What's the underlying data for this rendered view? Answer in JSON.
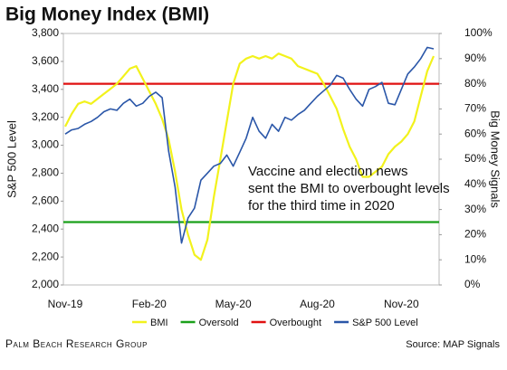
{
  "chart_data": {
    "type": "line",
    "title": "Big Money Index (BMI)",
    "y_label": "S&P 500 Level",
    "y2_label": "Big Money Signals",
    "categories": [
      "Nov-19",
      null,
      null,
      null,
      null,
      null,
      null,
      null,
      null,
      null,
      null,
      null,
      null,
      "Feb-20",
      null,
      null,
      null,
      null,
      null,
      null,
      null,
      null,
      null,
      null,
      null,
      null,
      "May-20",
      null,
      null,
      null,
      null,
      null,
      null,
      null,
      null,
      null,
      null,
      null,
      null,
      "Aug-20",
      null,
      null,
      null,
      null,
      null,
      null,
      null,
      null,
      null,
      null,
      null,
      null,
      "Nov-20",
      null,
      null,
      null,
      null,
      null
    ],
    "ylim": [
      2000,
      3800
    ],
    "yticks": [
      {
        "value": 2000,
        "label": "2,000"
      },
      {
        "value": 2200,
        "label": "2,200"
      },
      {
        "value": 2400,
        "label": "2,400"
      },
      {
        "value": 2600,
        "label": "2,600"
      },
      {
        "value": 2800,
        "label": "2,800"
      },
      {
        "value": 3000,
        "label": "3,000"
      },
      {
        "value": 3200,
        "label": "3,200"
      },
      {
        "value": 3400,
        "label": "3,400"
      },
      {
        "value": 3600,
        "label": "3,600"
      },
      {
        "value": 3800,
        "label": "3,800"
      }
    ],
    "y2lim": [
      0,
      100
    ],
    "y2ticks": [
      {
        "value": 0,
        "label": "0%"
      },
      {
        "value": 10,
        "label": "10%"
      },
      {
        "value": 20,
        "label": "20%"
      },
      {
        "value": 30,
        "label": "30%"
      },
      {
        "value": 40,
        "label": "40%"
      },
      {
        "value": 50,
        "label": "50%"
      },
      {
        "value": 60,
        "label": "60%"
      },
      {
        "value": 70,
        "label": "70%"
      },
      {
        "value": 80,
        "label": "80%"
      },
      {
        "value": 90,
        "label": "90%"
      },
      {
        "value": 100,
        "label": "100%"
      }
    ],
    "series": [
      {
        "name": "BMI",
        "color": "#f2f21c",
        "axis": "y2",
        "values": [
          63,
          68,
          72,
          73,
          72,
          74,
          76,
          78,
          80,
          83,
          86,
          87,
          82,
          77,
          72,
          66,
          58,
          45,
          30,
          20,
          12,
          10,
          18,
          35,
          50,
          65,
          80,
          88,
          90,
          91,
          90,
          91,
          90,
          92,
          91,
          90,
          87,
          86,
          85,
          84,
          80,
          75,
          70,
          62,
          55,
          50,
          43,
          43,
          45,
          47,
          52,
          55,
          57,
          60,
          65,
          75,
          85,
          91
        ]
      },
      {
        "name": "Oversold",
        "color": "#1aa01a",
        "axis": "y2",
        "level": 25
      },
      {
        "name": "Overbought",
        "color": "#e01010",
        "axis": "y2",
        "level": 80
      },
      {
        "name": "S&P 500 Level",
        "color": "#2a56a8",
        "values": [
          3080,
          3110,
          3120,
          3150,
          3170,
          3200,
          3240,
          3260,
          3250,
          3300,
          3330,
          3280,
          3300,
          3350,
          3380,
          3340,
          2960,
          2700,
          2300,
          2480,
          2550,
          2750,
          2800,
          2850,
          2870,
          2930,
          2850,
          2950,
          3050,
          3200,
          3100,
          3050,
          3150,
          3100,
          3200,
          3180,
          3220,
          3250,
          3300,
          3350,
          3390,
          3430,
          3500,
          3480,
          3400,
          3330,
          3280,
          3400,
          3420,
          3450,
          3300,
          3290,
          3400,
          3510,
          3560,
          3620,
          3700,
          3690
        ]
      }
    ],
    "annotation": [
      "Vaccine and election news",
      "sent the BMI to overbought levels",
      "for the third time in 2020"
    ],
    "logo": "Palm Beach Research Group",
    "source": "Source: MAP Signals"
  }
}
